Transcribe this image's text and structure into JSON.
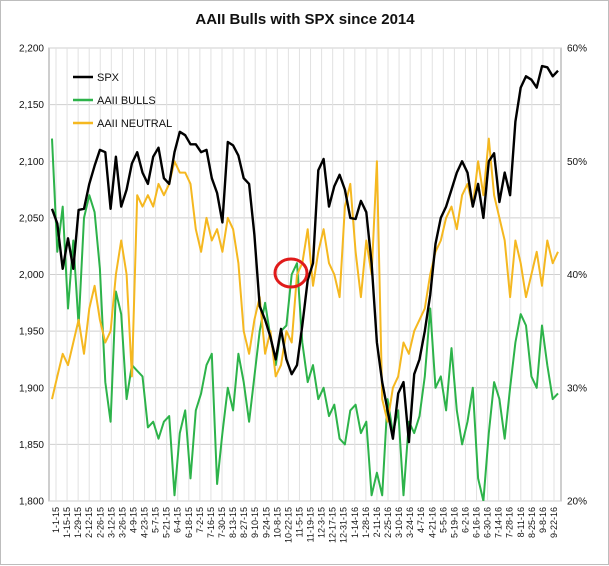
{
  "chart_data": {
    "type": "line",
    "title": "AAII Bulls with SPX since 2014",
    "xlabel": "",
    "ylabel": "",
    "y_left_range": [
      1800,
      2200
    ],
    "y_left_ticks": [
      "1,800",
      "1,850",
      "1,900",
      "1,950",
      "2,000",
      "2,050",
      "2,100",
      "2,150",
      "2,200"
    ],
    "y_right_range": [
      20,
      60
    ],
    "y_right_ticks": [
      "20%",
      "30%",
      "40%",
      "50%",
      "60%"
    ],
    "grid": true,
    "legend": "top-left",
    "x_ticks": [
      "1-1-15",
      "1-15-15",
      "1-29-15",
      "2-12-15",
      "2-26-15",
      "3-12-15",
      "3-26-15",
      "4-9-15",
      "4-23-15",
      "5-7-15",
      "5-21-15",
      "6-4-15",
      "6-18-15",
      "7-2-15",
      "7-16-15",
      "7-30-15",
      "8-13-15",
      "8-27-15",
      "9-10-15",
      "9-24-15",
      "10-8-15",
      "10-22-15",
      "11-5-15",
      "11-19-15",
      "12-3-15",
      "12-17-15",
      "12-31-15",
      "1-14-16",
      "1-28-16",
      "2-11-16",
      "2-25-16",
      "3-10-16",
      "3-24-16",
      "4-7-16",
      "4-21-16",
      "5-5-16",
      "5-19-16",
      "6-2-16",
      "6-16-16",
      "6-30-16",
      "7-14-16",
      "7-28-16",
      "8-11-16",
      "8-25-16",
      "9-8-16",
      "9-22-16"
    ],
    "series": [
      {
        "name": "SPX",
        "axis": "left",
        "color": "#000000",
        "values": [
          2058,
          2045,
          2005,
          2032,
          2005,
          2057,
          2058,
          2080,
          2096,
          2110,
          2108,
          2058,
          2104,
          2060,
          2075,
          2098,
          2108,
          2090,
          2080,
          2104,
          2112,
          2085,
          2080,
          2108,
          2126,
          2123,
          2115,
          2115,
          2108,
          2110,
          2085,
          2072,
          2046,
          2117,
          2114,
          2105,
          2085,
          2080,
          2035,
          1972,
          1960,
          1945,
          1925,
          1952,
          1925,
          1912,
          1920,
          1955,
          1995,
          2010,
          2092,
          2102,
          2060,
          2078,
          2088,
          2075,
          2050,
          2049,
          2065,
          2055,
          2010,
          1940,
          1905,
          1880,
          1855,
          1895,
          1905,
          1852,
          1912,
          1925,
          1950,
          1982,
          2027,
          2050,
          2060,
          2075,
          2090,
          2100,
          2090,
          2060,
          2080,
          2050,
          2100,
          2107,
          2064,
          2090,
          2070,
          2135,
          2165,
          2175,
          2172,
          2165,
          2184,
          2183,
          2175,
          2180
        ]
      },
      {
        "name": "AAII BULLS",
        "axis": "left",
        "color": "#2db34a",
        "values": [
          2120,
          2020,
          2060,
          1970,
          2030,
          1955,
          2050,
          2070,
          2055,
          2005,
          1905,
          1870,
          1985,
          1965,
          1890,
          1920,
          1915,
          1910,
          1865,
          1870,
          1855,
          1870,
          1875,
          1805,
          1860,
          1880,
          1820,
          1880,
          1895,
          1920,
          1930,
          1815,
          1860,
          1900,
          1880,
          1930,
          1905,
          1870,
          1910,
          1950,
          1975,
          1945,
          1920,
          1950,
          1955,
          2000,
          2010,
          1940,
          1905,
          1920,
          1890,
          1900,
          1875,
          1885,
          1855,
          1850,
          1880,
          1885,
          1860,
          1870,
          1805,
          1825,
          1805,
          1890,
          1860,
          1880,
          1805,
          1870,
          1860,
          1875,
          1910,
          1970,
          1900,
          1910,
          1880,
          1935,
          1880,
          1850,
          1870,
          1900,
          1820,
          1800,
          1860,
          1905,
          1890,
          1855,
          1900,
          1940,
          1965,
          1955,
          1910,
          1900,
          1955,
          1920,
          1890,
          1895
        ]
      },
      {
        "name": "AAII NEUTRAL",
        "axis": "right",
        "color": "#f5b820",
        "values": [
          29,
          31,
          33,
          32,
          34,
          36,
          33,
          37,
          39,
          36,
          34,
          35,
          40,
          43,
          40,
          31,
          47,
          46,
          47,
          46,
          48,
          47,
          48,
          50,
          49,
          49,
          48,
          44,
          42,
          45,
          43,
          44,
          42,
          45,
          44,
          41,
          35,
          33,
          36,
          38,
          33,
          35,
          31,
          32,
          35,
          34,
          40,
          41,
          44,
          39,
          42,
          44,
          41,
          40,
          38,
          46,
          48,
          42,
          38,
          43,
          40,
          50,
          29,
          27,
          30,
          31,
          34,
          33,
          35,
          36,
          37,
          40,
          42,
          43,
          45,
          46,
          44,
          47,
          48,
          46,
          50,
          47,
          52,
          47,
          45,
          43,
          38,
          43,
          41,
          38,
          40,
          42,
          39,
          43,
          41,
          42
        ]
      }
    ],
    "annotation": "red circle"
  }
}
